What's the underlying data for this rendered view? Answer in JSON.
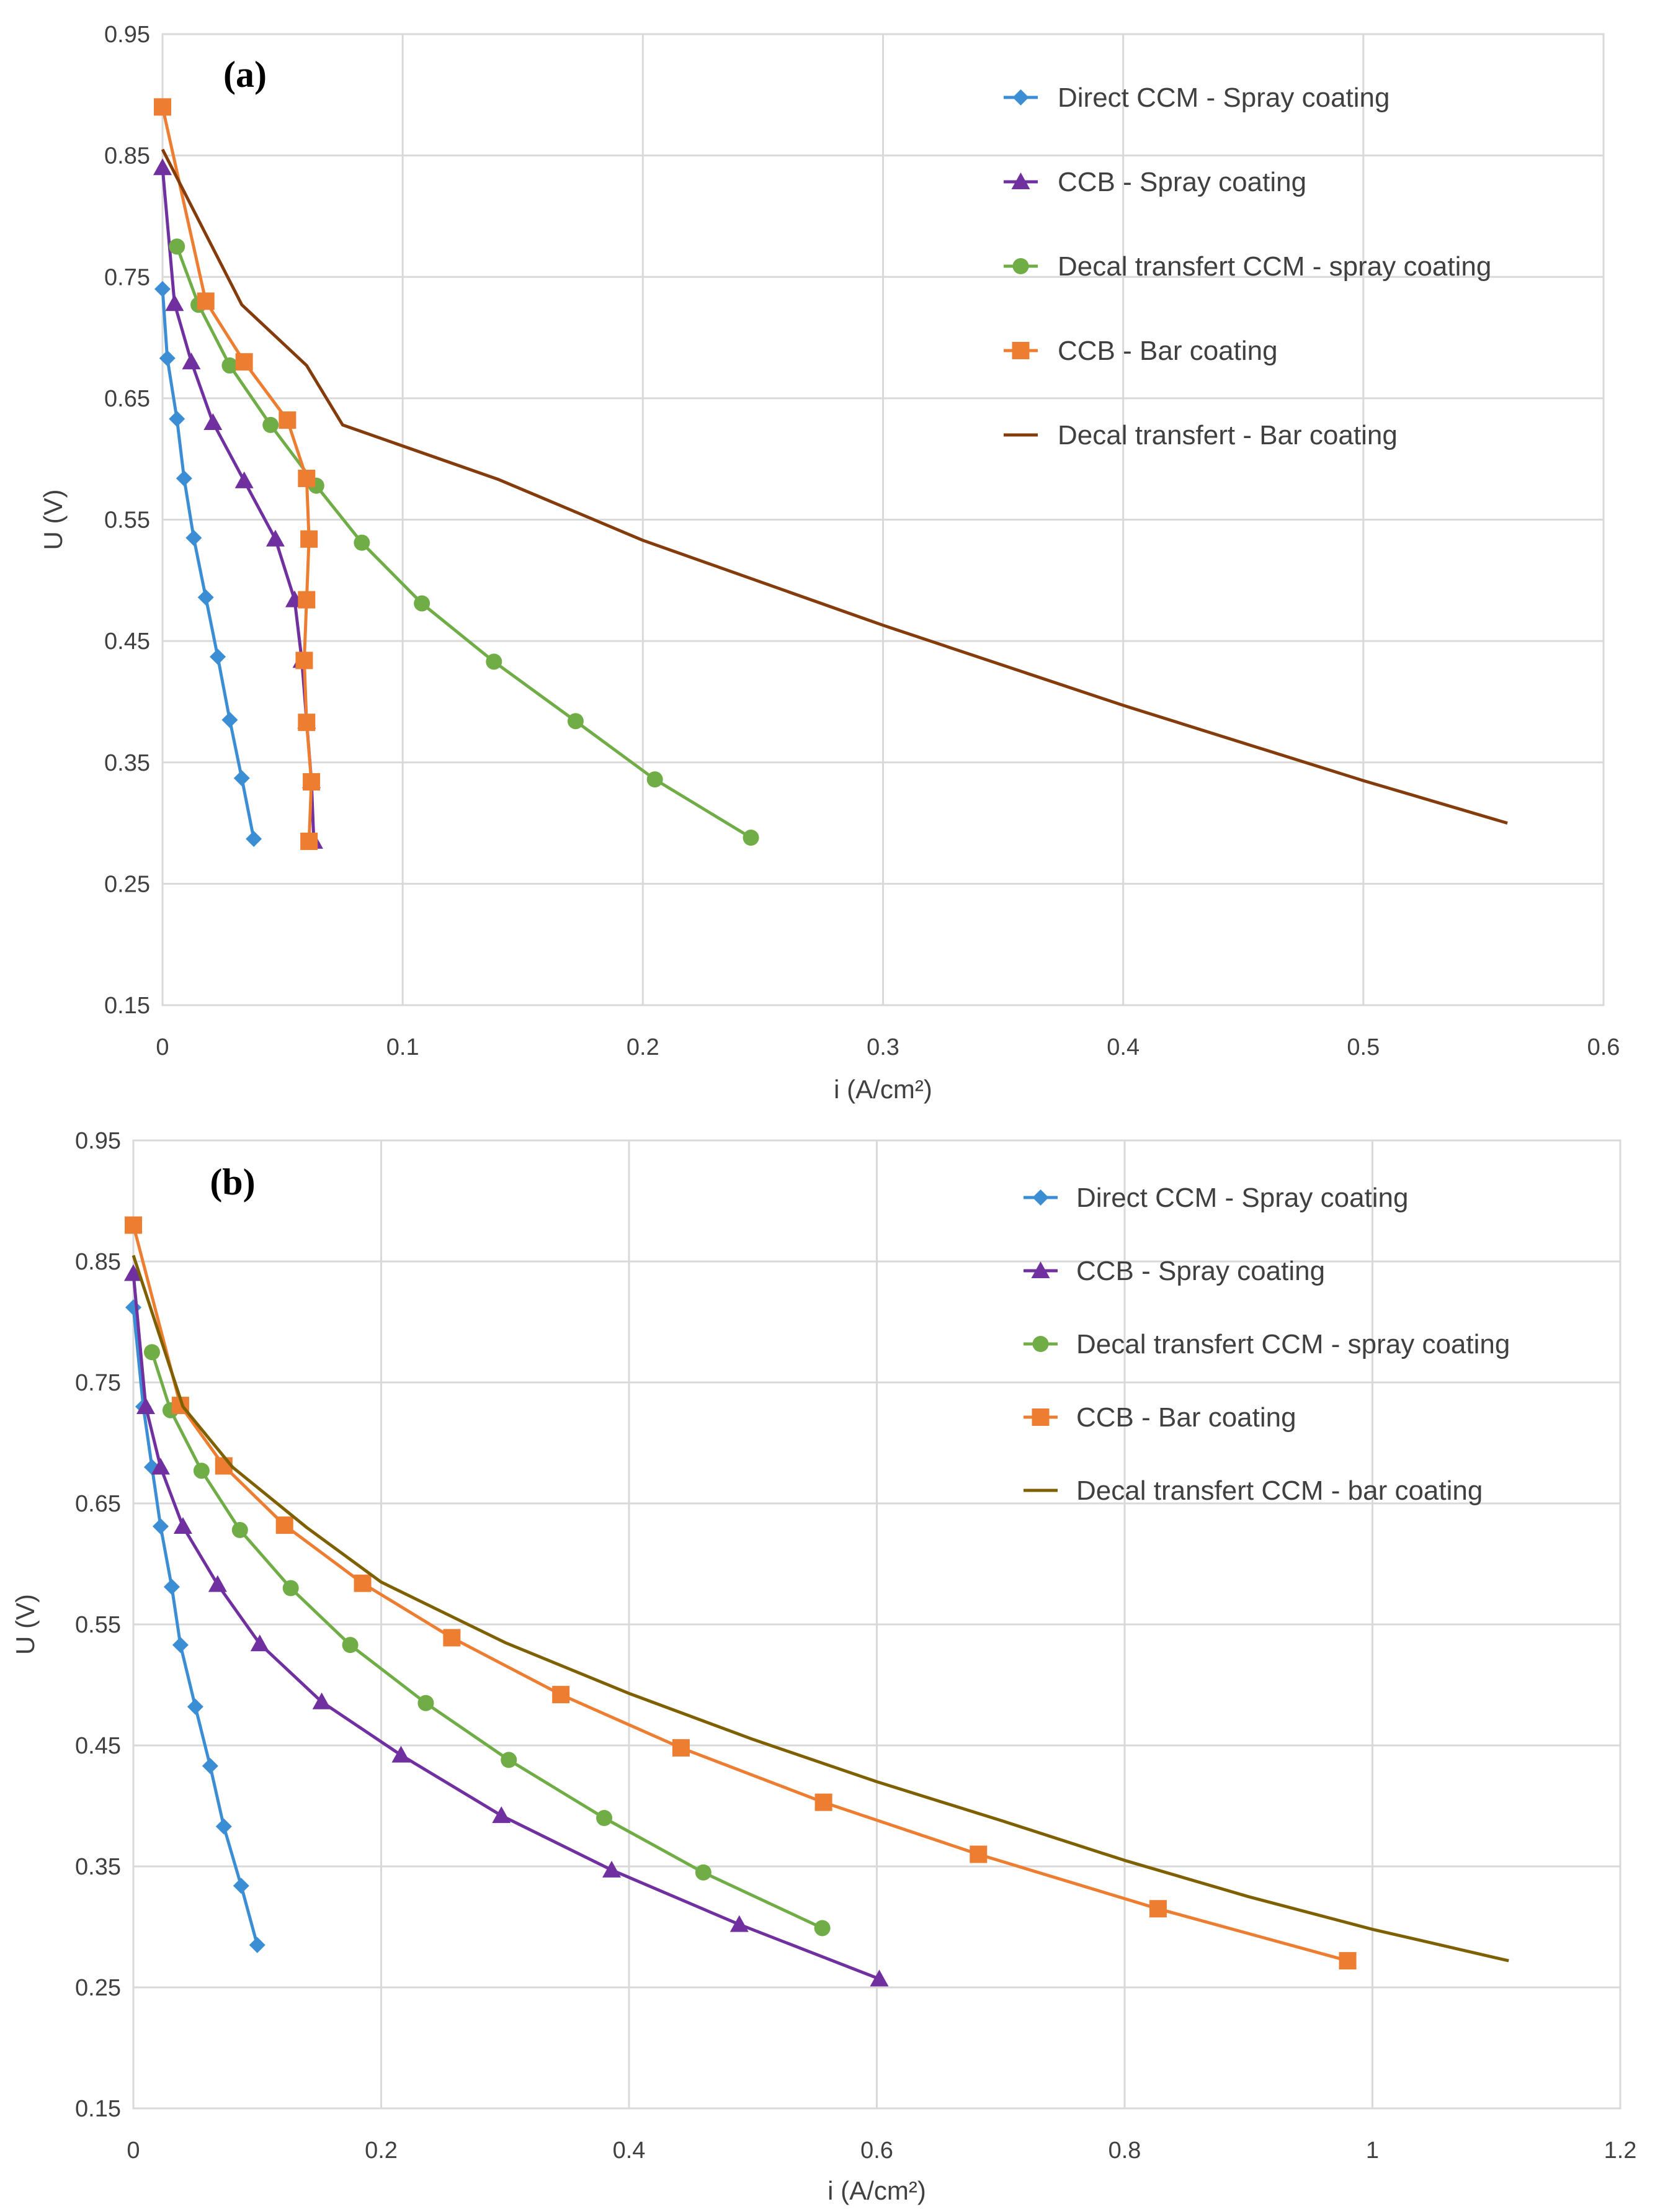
{
  "chart_data": [
    {
      "type": "line",
      "panel_label": "(a)",
      "xlabel": "i (A/cm²)",
      "ylabel": "U (V)",
      "xlim": [
        0,
        0.6
      ],
      "ylim": [
        0.15,
        0.95
      ],
      "x_ticks": [
        "0",
        "0.1",
        "0.2",
        "0.3",
        "0.4",
        "0.5",
        "0.6"
      ],
      "y_ticks": [
        "0.15",
        "0.25",
        "0.35",
        "0.45",
        "0.55",
        "0.65",
        "0.75",
        "0.85",
        "0.95"
      ],
      "grid": true,
      "legend_position": "top-right",
      "series": [
        {
          "name": "Direct CCM - Spray coating",
          "color": "#3b8ed4",
          "marker": "diamond",
          "points": [
            [
              0.0,
              0.74
            ],
            [
              0.002,
              0.683
            ],
            [
              0.006,
              0.633
            ],
            [
              0.009,
              0.584
            ],
            [
              0.013,
              0.535
            ],
            [
              0.018,
              0.486
            ],
            [
              0.023,
              0.437
            ],
            [
              0.028,
              0.385
            ],
            [
              0.033,
              0.337
            ],
            [
              0.038,
              0.287
            ]
          ]
        },
        {
          "name": "CCB - Spray coating",
          "color": "#7030a0",
          "marker": "triangle",
          "points": [
            [
              0.0,
              0.84
            ],
            [
              0.005,
              0.728
            ],
            [
              0.012,
              0.68
            ],
            [
              0.021,
              0.63
            ],
            [
              0.034,
              0.582
            ],
            [
              0.047,
              0.534
            ],
            [
              0.055,
              0.484
            ],
            [
              0.058,
              0.434
            ],
            [
              0.06,
              0.384
            ],
            [
              0.062,
              0.335
            ],
            [
              0.063,
              0.285
            ]
          ]
        },
        {
          "name": "Decal transfert CCM - spray coating",
          "color": "#70ad47",
          "marker": "circle",
          "points": [
            [
              0.006,
              0.775
            ],
            [
              0.015,
              0.727
            ],
            [
              0.028,
              0.677
            ],
            [
              0.045,
              0.628
            ],
            [
              0.064,
              0.578
            ],
            [
              0.083,
              0.531
            ],
            [
              0.108,
              0.481
            ],
            [
              0.138,
              0.433
            ],
            [
              0.172,
              0.384
            ],
            [
              0.205,
              0.336
            ],
            [
              0.245,
              0.288
            ]
          ]
        },
        {
          "name": "CCB - Bar coating",
          "color": "#ed7d31",
          "marker": "square",
          "points": [
            [
              0.0,
              0.89
            ],
            [
              0.018,
              0.73
            ],
            [
              0.034,
              0.68
            ],
            [
              0.052,
              0.632
            ],
            [
              0.06,
              0.584
            ],
            [
              0.061,
              0.534
            ],
            [
              0.06,
              0.484
            ],
            [
              0.059,
              0.434
            ],
            [
              0.06,
              0.383
            ],
            [
              0.062,
              0.334
            ],
            [
              0.061,
              0.285
            ]
          ]
        },
        {
          "name": "Decal transfert - Bar coating",
          "color": "#843c0c",
          "marker": "none",
          "points": [
            [
              0.0,
              0.855
            ],
            [
              0.033,
              0.727
            ],
            [
              0.06,
              0.677
            ],
            [
              0.075,
              0.628
            ],
            [
              0.14,
              0.583
            ],
            [
              0.2,
              0.533
            ],
            [
              0.3,
              0.463
            ],
            [
              0.4,
              0.397
            ],
            [
              0.5,
              0.335
            ],
            [
              0.56,
              0.3
            ]
          ]
        }
      ]
    },
    {
      "type": "line",
      "panel_label": "(b)",
      "xlabel": "i (A/cm²)",
      "ylabel": "U (V)",
      "xlim": [
        0,
        1.2
      ],
      "ylim": [
        0.15,
        0.95
      ],
      "x_ticks": [
        "0",
        "0.2",
        "0.4",
        "0.6",
        "0.8",
        "1",
        "1.2"
      ],
      "y_ticks": [
        "0.15",
        "0.25",
        "0.35",
        "0.45",
        "0.55",
        "0.65",
        "0.75",
        "0.85",
        "0.95"
      ],
      "grid": true,
      "legend_position": "top-right",
      "series": [
        {
          "name": "Direct CCM - Spray coating",
          "color": "#3b8ed4",
          "marker": "diamond",
          "points": [
            [
              0.0,
              0.812
            ],
            [
              0.008,
              0.73
            ],
            [
              0.015,
              0.68
            ],
            [
              0.022,
              0.631
            ],
            [
              0.031,
              0.581
            ],
            [
              0.038,
              0.533
            ],
            [
              0.05,
              0.482
            ],
            [
              0.062,
              0.433
            ],
            [
              0.073,
              0.383
            ],
            [
              0.087,
              0.334
            ],
            [
              0.1,
              0.285
            ]
          ]
        },
        {
          "name": "CCB - Spray coating",
          "color": "#7030a0",
          "marker": "triangle",
          "points": [
            [
              0.0,
              0.84
            ],
            [
              0.01,
              0.73
            ],
            [
              0.022,
              0.68
            ],
            [
              0.04,
              0.631
            ],
            [
              0.068,
              0.583
            ],
            [
              0.102,
              0.534
            ],
            [
              0.152,
              0.486
            ],
            [
              0.216,
              0.442
            ],
            [
              0.297,
              0.392
            ],
            [
              0.386,
              0.347
            ],
            [
              0.489,
              0.302
            ],
            [
              0.602,
              0.257
            ]
          ]
        },
        {
          "name": "Decal transfert CCM - spray coating",
          "color": "#70ad47",
          "marker": "circle",
          "points": [
            [
              0.015,
              0.775
            ],
            [
              0.03,
              0.727
            ],
            [
              0.055,
              0.677
            ],
            [
              0.086,
              0.628
            ],
            [
              0.127,
              0.58
            ],
            [
              0.175,
              0.533
            ],
            [
              0.236,
              0.485
            ],
            [
              0.303,
              0.438
            ],
            [
              0.38,
              0.39
            ],
            [
              0.46,
              0.345
            ],
            [
              0.556,
              0.299
            ]
          ]
        },
        {
          "name": "CCB - Bar coating",
          "color": "#ed7d31",
          "marker": "square",
          "points": [
            [
              0.0,
              0.88
            ],
            [
              0.038,
              0.731
            ],
            [
              0.073,
              0.681
            ],
            [
              0.122,
              0.632
            ],
            [
              0.185,
              0.584
            ],
            [
              0.257,
              0.539
            ],
            [
              0.345,
              0.492
            ],
            [
              0.442,
              0.448
            ],
            [
              0.557,
              0.403
            ],
            [
              0.682,
              0.36
            ],
            [
              0.827,
              0.315
            ],
            [
              0.98,
              0.272
            ]
          ]
        },
        {
          "name": "Decal transfert CCM - bar coating",
          "color": "#7f6000",
          "marker": "none",
          "points": [
            [
              0.0,
              0.855
            ],
            [
              0.04,
              0.73
            ],
            [
              0.08,
              0.68
            ],
            [
              0.14,
              0.63
            ],
            [
              0.2,
              0.585
            ],
            [
              0.3,
              0.535
            ],
            [
              0.4,
              0.493
            ],
            [
              0.5,
              0.455
            ],
            [
              0.6,
              0.42
            ],
            [
              0.7,
              0.388
            ],
            [
              0.8,
              0.355
            ],
            [
              0.9,
              0.325
            ],
            [
              1.0,
              0.298
            ],
            [
              1.11,
              0.272
            ]
          ]
        }
      ]
    }
  ]
}
